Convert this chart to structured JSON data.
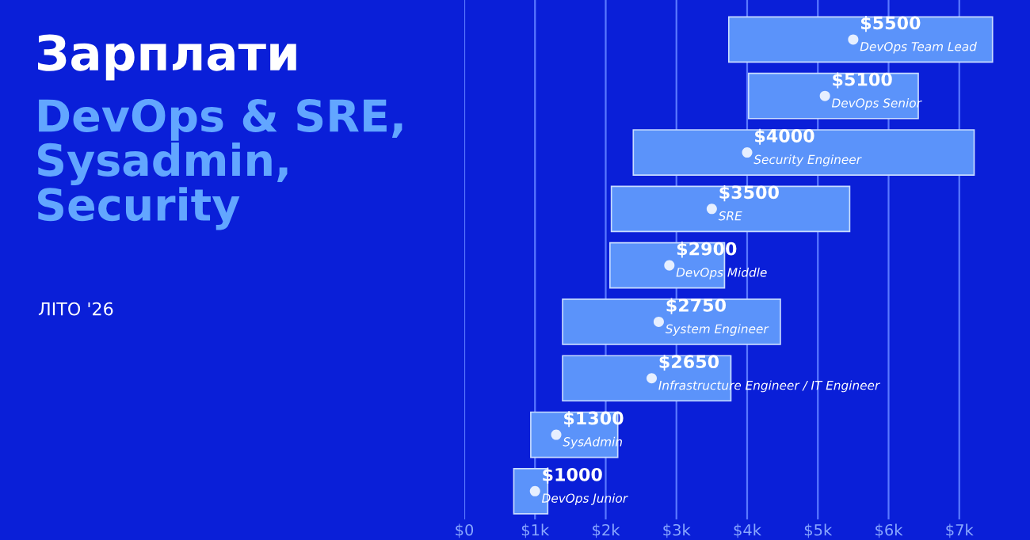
{
  "chart_data": {
    "type": "bar",
    "orientation": "horizontal",
    "title": "Зарплати",
    "subtitle": "DevOps & SRE,\nSysadmin,\nSecurity",
    "categories": [
      "DevOps Team Lead",
      "DevOps Senior",
      "Security Engineer",
      "SRE",
      "DevOps Middle",
      "System Engineer",
      "Infrastructure Engineer / IT Engineer",
      "SysAdmin",
      "DevOps Junior"
    ],
    "series": [
      {
        "color": "#5b93fa",
        "base": [
          3740,
          4020,
          2390,
          2080,
          2060,
          1390,
          1390,
          940,
          700
        ],
        "values": [
          3730,
          2400,
          4820,
          3370,
          1620,
          3080,
          2380,
          1230,
          480
        ]
      },
      {
        "type": "scatter",
        "color": "#e6efff",
        "marker": "circle",
        "values": [
          5500,
          5100,
          4000,
          3500,
          2900,
          2750,
          2650,
          1300,
          1000
        ],
        "value_labels": [
          "$5500",
          "$5100",
          "$4000",
          "$3500",
          "$2900",
          "$2750",
          "$2650",
          "$1300",
          "$1000"
        ]
      }
    ],
    "annotations": [
      "ЛІТО '26"
    ],
    "xlim": [
      0,
      8000
    ],
    "xticks": [
      {
        "value": 0,
        "label": "$0"
      },
      {
        "value": 1000,
        "label": "$1k"
      },
      {
        "value": 2000,
        "label": "$2k"
      },
      {
        "value": 3000,
        "label": "$3k"
      },
      {
        "value": 4000,
        "label": "$4k"
      },
      {
        "value": 5000,
        "label": "$5k"
      },
      {
        "value": 6000,
        "label": "$6k"
      },
      {
        "value": 7000,
        "label": "$7k"
      }
    ],
    "grid": "x",
    "tick_labels": "x"
  }
}
